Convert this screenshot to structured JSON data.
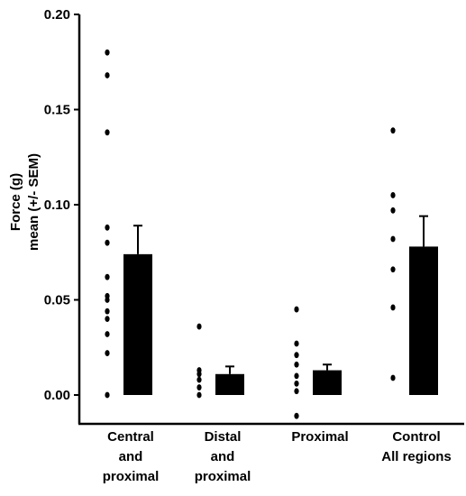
{
  "chart_data": {
    "type": "bar",
    "title": "",
    "xlabel": "",
    "ylabel_lines": [
      "Force (g)",
      "mean (+/- SEM)"
    ],
    "ylim": [
      -0.015,
      0.2
    ],
    "yticks": [
      0.0,
      0.05,
      0.1,
      0.15,
      0.2
    ],
    "ytick_labels": [
      "0.00",
      "0.05",
      "0.10",
      "0.15",
      "0.20"
    ],
    "grid": false,
    "categories": [
      {
        "lines": [
          "Central",
          "and",
          "proximal"
        ]
      },
      {
        "lines": [
          "Distal",
          "and",
          "proximal"
        ]
      },
      {
        "lines": [
          "Proximal"
        ]
      },
      {
        "lines": [
          "Control",
          "All regions"
        ]
      }
    ],
    "series": [
      {
        "values": [
          0.074,
          0.011,
          0.013,
          0.078
        ],
        "sem": [
          0.015,
          0.004,
          0.003,
          0.016
        ]
      }
    ],
    "points": [
      [
        0.18,
        0.168,
        0.138,
        0.088,
        0.08,
        0.062,
        0.052,
        0.05,
        0.044,
        0.04,
        0.032,
        0.022,
        0.0
      ],
      [
        0.036,
        0.013,
        0.011,
        0.008,
        0.004,
        0.0
      ],
      [
        0.045,
        0.027,
        0.021,
        0.016,
        0.01,
        0.006,
        0.002,
        -0.011
      ],
      [
        0.139,
        0.105,
        0.097,
        0.082,
        0.066,
        0.046,
        0.009
      ]
    ],
    "colors": {
      "bar": "#000000",
      "point": "#000000",
      "axis": "#000000"
    }
  }
}
